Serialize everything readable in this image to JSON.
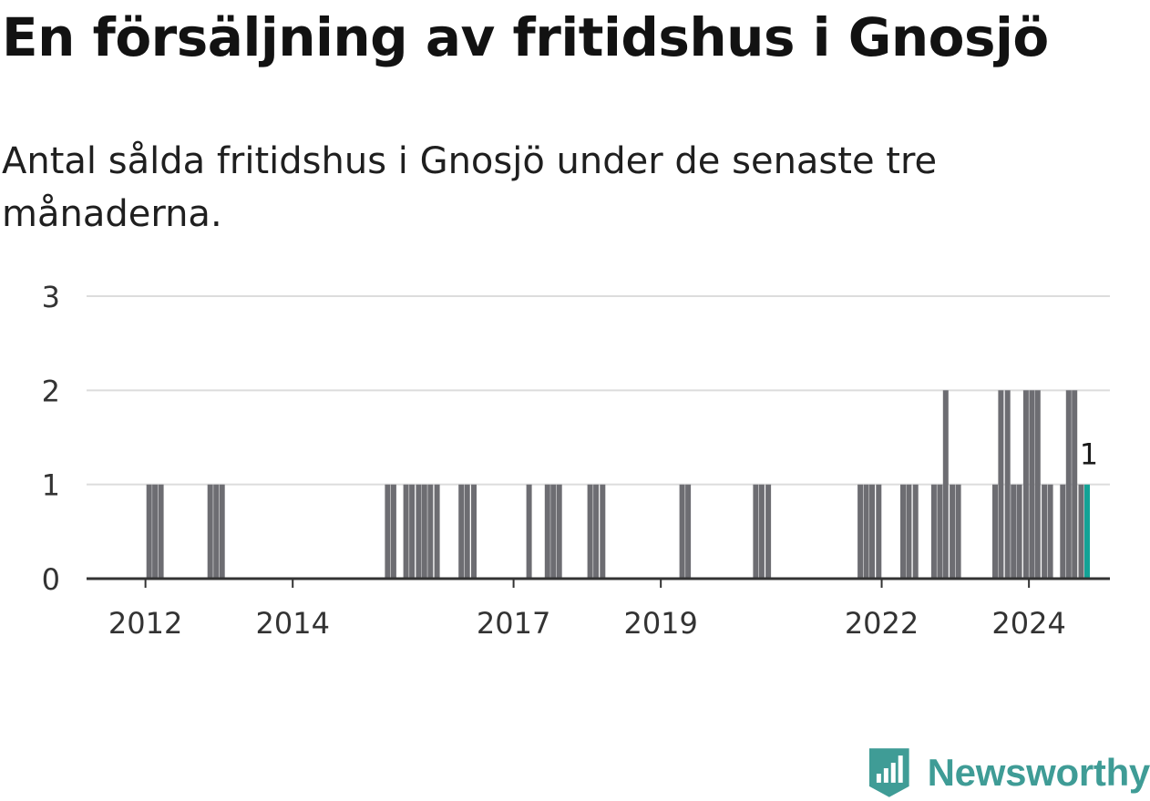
{
  "title": "En försäljning av fritidshus i Gnosjö",
  "subtitle": "Antal sålda fritidshus i Gnosjö under de senaste tre månaderna.",
  "logo": {
    "text": "Newsworthy",
    "icon": "bar-chart-icon",
    "color": "#3f9c96"
  },
  "colors": {
    "bar": "#6d6d72",
    "highlight": "#13a396",
    "grid": "#dcdcdc",
    "axis": "#333333"
  },
  "chart_data": {
    "type": "bar",
    "x_unit": "year",
    "ylim": [
      0,
      3
    ],
    "yticks": [
      0,
      1,
      2,
      3
    ],
    "xticks": [
      2012,
      2014,
      2017,
      2019,
      2022,
      2024
    ],
    "xlim": [
      2011.2,
      2025.1
    ],
    "grid": true,
    "bars": [
      {
        "x": 2012.05,
        "y": 1
      },
      {
        "x": 2012.13,
        "y": 1
      },
      {
        "x": 2012.21,
        "y": 1
      },
      {
        "x": 2012.88,
        "y": 1
      },
      {
        "x": 2012.96,
        "y": 1
      },
      {
        "x": 2013.04,
        "y": 1
      },
      {
        "x": 2015.29,
        "y": 1
      },
      {
        "x": 2015.37,
        "y": 1
      },
      {
        "x": 2015.54,
        "y": 1
      },
      {
        "x": 2015.62,
        "y": 1
      },
      {
        "x": 2015.71,
        "y": 1
      },
      {
        "x": 2015.79,
        "y": 1
      },
      {
        "x": 2015.87,
        "y": 1
      },
      {
        "x": 2015.96,
        "y": 1
      },
      {
        "x": 2016.29,
        "y": 1
      },
      {
        "x": 2016.37,
        "y": 1
      },
      {
        "x": 2016.46,
        "y": 1
      },
      {
        "x": 2017.21,
        "y": 1
      },
      {
        "x": 2017.46,
        "y": 1
      },
      {
        "x": 2017.54,
        "y": 1
      },
      {
        "x": 2017.62,
        "y": 1
      },
      {
        "x": 2018.04,
        "y": 1
      },
      {
        "x": 2018.12,
        "y": 1
      },
      {
        "x": 2018.21,
        "y": 1
      },
      {
        "x": 2019.29,
        "y": 1
      },
      {
        "x": 2019.37,
        "y": 1
      },
      {
        "x": 2020.29,
        "y": 1
      },
      {
        "x": 2020.37,
        "y": 1
      },
      {
        "x": 2020.46,
        "y": 1
      },
      {
        "x": 2021.71,
        "y": 1
      },
      {
        "x": 2021.79,
        "y": 1
      },
      {
        "x": 2021.87,
        "y": 1
      },
      {
        "x": 2021.96,
        "y": 1
      },
      {
        "x": 2022.29,
        "y": 1
      },
      {
        "x": 2022.37,
        "y": 1
      },
      {
        "x": 2022.46,
        "y": 1
      },
      {
        "x": 2022.71,
        "y": 1
      },
      {
        "x": 2022.79,
        "y": 1
      },
      {
        "x": 2022.87,
        "y": 2
      },
      {
        "x": 2022.96,
        "y": 1
      },
      {
        "x": 2023.04,
        "y": 1
      },
      {
        "x": 2023.54,
        "y": 1
      },
      {
        "x": 2023.62,
        "y": 2
      },
      {
        "x": 2023.71,
        "y": 2
      },
      {
        "x": 2023.79,
        "y": 1
      },
      {
        "x": 2023.87,
        "y": 1
      },
      {
        "x": 2023.96,
        "y": 2
      },
      {
        "x": 2024.04,
        "y": 2
      },
      {
        "x": 2024.12,
        "y": 2
      },
      {
        "x": 2024.21,
        "y": 1
      },
      {
        "x": 2024.29,
        "y": 1
      },
      {
        "x": 2024.46,
        "y": 1
      },
      {
        "x": 2024.54,
        "y": 2
      },
      {
        "x": 2024.62,
        "y": 2
      },
      {
        "x": 2024.71,
        "y": 1
      },
      {
        "x": 2024.79,
        "y": 1,
        "highlight": true
      }
    ],
    "annotation": {
      "x": 2024.79,
      "y": 1,
      "text": "1"
    }
  }
}
